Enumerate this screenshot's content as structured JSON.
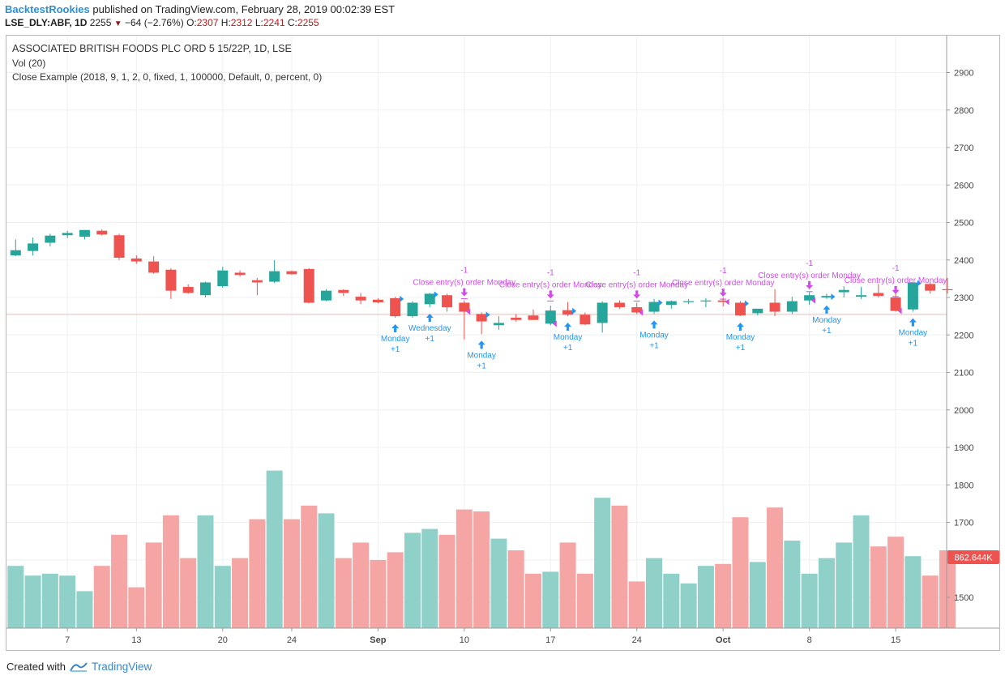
{
  "header": {
    "publisher": "BacktestRookies",
    "published_text": " published on TradingView.com, February 28, 2019 00:02:39 EST",
    "symbol": "LSE_DLY:ABF, 1D",
    "last": "2255",
    "change": "−64 (−2.76%)",
    "open_label": "O:",
    "open": "2307",
    "high_label": "H:",
    "high": "2312",
    "low_label": "L:",
    "low": "2241",
    "close_label": "C:",
    "close": "2255"
  },
  "legend": {
    "title": "ASSOCIATED BRITISH FOODS PLC ORD 5 15/22P, 1D, LSE",
    "vol": "Vol (20)",
    "strategy": "Close Example (2018, 9, 1, 2, 0, fixed, 1, 100000, Default, 0, percent, 0)"
  },
  "footer": {
    "created": "Created with",
    "brand": "TradingView"
  },
  "colors": {
    "up": "#26a69a",
    "down": "#ef5350",
    "vol_up": "#8fd0c9",
    "vol_down": "#f5a5a3",
    "entry": "#2196f3",
    "exit": "#d04be8",
    "price_line": "#f4b6b0",
    "badge": "#ef5350"
  },
  "chart_data": {
    "type": "candlestick",
    "price_axis": {
      "ylim": [
        1420,
        2980
      ],
      "ticks": [
        1500,
        1600,
        1700,
        1800,
        1900,
        2000,
        2100,
        2200,
        2300,
        2400,
        2500,
        2600,
        2700,
        2800,
        2900
      ]
    },
    "volume_badge": "862.644K",
    "last_price": 2255,
    "x_labels": [
      {
        "i": 3,
        "label": "7"
      },
      {
        "i": 7,
        "label": "13"
      },
      {
        "i": 12,
        "label": "20"
      },
      {
        "i": 16,
        "label": "24"
      },
      {
        "i": 21,
        "label": "Sep",
        "bold": true
      },
      {
        "i": 26,
        "label": "10"
      },
      {
        "i": 31,
        "label": "17"
      },
      {
        "i": 36,
        "label": "24"
      },
      {
        "i": 41,
        "label": "Oct",
        "bold": true
      },
      {
        "i": 46,
        "label": "8"
      },
      {
        "i": 51,
        "label": "15"
      }
    ],
    "candles": [
      {
        "o": 2412,
        "h": 2455,
        "l": 2410,
        "c": 2426
      },
      {
        "o": 2424,
        "h": 2460,
        "l": 2412,
        "c": 2444
      },
      {
        "o": 2446,
        "h": 2470,
        "l": 2436,
        "c": 2465
      },
      {
        "o": 2466,
        "h": 2478,
        "l": 2458,
        "c": 2472
      },
      {
        "o": 2462,
        "h": 2478,
        "l": 2455,
        "c": 2480
      },
      {
        "o": 2478,
        "h": 2482,
        "l": 2465,
        "c": 2468
      },
      {
        "o": 2466,
        "h": 2470,
        "l": 2400,
        "c": 2406
      },
      {
        "o": 2404,
        "h": 2412,
        "l": 2390,
        "c": 2396
      },
      {
        "o": 2396,
        "h": 2410,
        "l": 2363,
        "c": 2366
      },
      {
        "o": 2374,
        "h": 2378,
        "l": 2296,
        "c": 2318
      },
      {
        "o": 2328,
        "h": 2335,
        "l": 2310,
        "c": 2312
      },
      {
        "o": 2306,
        "h": 2342,
        "l": 2300,
        "c": 2340
      },
      {
        "o": 2330,
        "h": 2382,
        "l": 2326,
        "c": 2372
      },
      {
        "o": 2366,
        "h": 2372,
        "l": 2356,
        "c": 2360
      },
      {
        "o": 2346,
        "h": 2352,
        "l": 2306,
        "c": 2340
      },
      {
        "o": 2342,
        "h": 2400,
        "l": 2338,
        "c": 2370
      },
      {
        "o": 2370,
        "h": 2372,
        "l": 2360,
        "c": 2362
      },
      {
        "o": 2376,
        "h": 2378,
        "l": 2284,
        "c": 2286
      },
      {
        "o": 2292,
        "h": 2322,
        "l": 2290,
        "c": 2318
      },
      {
        "o": 2320,
        "h": 2322,
        "l": 2304,
        "c": 2312
      },
      {
        "o": 2302,
        "h": 2312,
        "l": 2282,
        "c": 2292
      },
      {
        "o": 2294,
        "h": 2298,
        "l": 2284,
        "c": 2287
      },
      {
        "o": 2298,
        "h": 2302,
        "l": 2246,
        "c": 2250
      },
      {
        "o": 2250,
        "h": 2290,
        "l": 2246,
        "c": 2286
      },
      {
        "o": 2282,
        "h": 2312,
        "l": 2274,
        "c": 2310
      },
      {
        "o": 2306,
        "h": 2310,
        "l": 2262,
        "c": 2274
      },
      {
        "o": 2286,
        "h": 2292,
        "l": 2188,
        "c": 2262
      },
      {
        "o": 2256,
        "h": 2260,
        "l": 2202,
        "c": 2236
      },
      {
        "o": 2226,
        "h": 2250,
        "l": 2214,
        "c": 2232
      },
      {
        "o": 2246,
        "h": 2256,
        "l": 2236,
        "c": 2240
      },
      {
        "o": 2252,
        "h": 2268,
        "l": 2240,
        "c": 2240
      },
      {
        "o": 2230,
        "h": 2278,
        "l": 2226,
        "c": 2265
      },
      {
        "o": 2266,
        "h": 2288,
        "l": 2250,
        "c": 2254
      },
      {
        "o": 2254,
        "h": 2260,
        "l": 2226,
        "c": 2228
      },
      {
        "o": 2232,
        "h": 2290,
        "l": 2206,
        "c": 2286
      },
      {
        "o": 2286,
        "h": 2292,
        "l": 2270,
        "c": 2274
      },
      {
        "o": 2274,
        "h": 2286,
        "l": 2256,
        "c": 2260
      },
      {
        "o": 2262,
        "h": 2296,
        "l": 2256,
        "c": 2288
      },
      {
        "o": 2280,
        "h": 2292,
        "l": 2270,
        "c": 2290
      },
      {
        "o": 2288,
        "h": 2296,
        "l": 2282,
        "c": 2290
      },
      {
        "o": 2290,
        "h": 2298,
        "l": 2274,
        "c": 2292
      },
      {
        "o": 2292,
        "h": 2300,
        "l": 2276,
        "c": 2288
      },
      {
        "o": 2286,
        "h": 2290,
        "l": 2250,
        "c": 2252
      },
      {
        "o": 2258,
        "h": 2270,
        "l": 2252,
        "c": 2270
      },
      {
        "o": 2286,
        "h": 2322,
        "l": 2250,
        "c": 2262
      },
      {
        "o": 2262,
        "h": 2302,
        "l": 2256,
        "c": 2290
      },
      {
        "o": 2292,
        "h": 2314,
        "l": 2280,
        "c": 2306
      },
      {
        "o": 2300,
        "h": 2310,
        "l": 2296,
        "c": 2304
      },
      {
        "o": 2314,
        "h": 2330,
        "l": 2300,
        "c": 2320
      },
      {
        "o": 2302,
        "h": 2328,
        "l": 2296,
        "c": 2306
      },
      {
        "o": 2312,
        "h": 2336,
        "l": 2300,
        "c": 2304
      },
      {
        "o": 2300,
        "h": 2314,
        "l": 2262,
        "c": 2264
      },
      {
        "o": 2268,
        "h": 2340,
        "l": 2262,
        "c": 2340
      },
      {
        "o": 2336,
        "h": 2340,
        "l": 2310,
        "c": 2318
      },
      {
        "o": 2322,
        "h": 2352,
        "l": 2310,
        "c": 2320
      }
    ],
    "volume_units": "relative",
    "volumes": [
      0.32,
      0.27,
      0.28,
      0.27,
      0.19,
      0.32,
      0.48,
      0.21,
      0.44,
      0.58,
      0.36,
      0.58,
      0.32,
      0.36,
      0.56,
      0.81,
      0.56,
      0.63,
      0.59,
      0.36,
      0.44,
      0.35,
      0.39,
      0.49,
      0.51,
      0.48,
      0.61,
      0.6,
      0.46,
      0.4,
      0.28,
      0.29,
      0.44,
      0.28,
      0.67,
      0.63,
      0.24,
      0.36,
      0.28,
      0.23,
      0.32,
      0.33,
      0.57,
      0.34,
      0.62,
      0.45,
      0.28,
      0.36,
      0.44,
      0.58,
      0.42,
      0.47,
      0.37,
      0.27,
      0.4
    ],
    "entries": [
      {
        "i": 22,
        "label1": "Monday",
        "label2": "+1"
      },
      {
        "i": 24,
        "label1": "Wednesday",
        "label2": "+1"
      },
      {
        "i": 27,
        "label1": "Monday",
        "label2": "+1"
      },
      {
        "i": 32,
        "label1": "Monday",
        "label2": "+1"
      },
      {
        "i": 37,
        "label1": "Monday",
        "label2": "+1"
      },
      {
        "i": 42,
        "label1": "Monday",
        "label2": "+1"
      },
      {
        "i": 47,
        "label1": "Monday",
        "label2": "+1"
      },
      {
        "i": 52,
        "label1": "Monday",
        "label2": "+1"
      }
    ],
    "exits": [
      {
        "i": 26,
        "text": "Close entry(s) order Monday",
        "qty": "-1",
        "ytop": 2303
      },
      {
        "i": 31,
        "text": "Close entry(s) order Monday",
        "qty": "-1",
        "ytop": 2297
      },
      {
        "i": 36,
        "text": "Close entry(s) order Monday",
        "qty": "-1",
        "ytop": 2297
      },
      {
        "i": 41,
        "text": "Close entry(s) order Monday",
        "qty": "-1",
        "ytop": 2302
      },
      {
        "i": 46,
        "text": "Close entry(s) order Monday",
        "qty": "-1",
        "ytop": 2322
      },
      {
        "i": 51,
        "text": "Close entry(s) order Monday",
        "qty": "-1",
        "ytop": 2309
      }
    ]
  }
}
